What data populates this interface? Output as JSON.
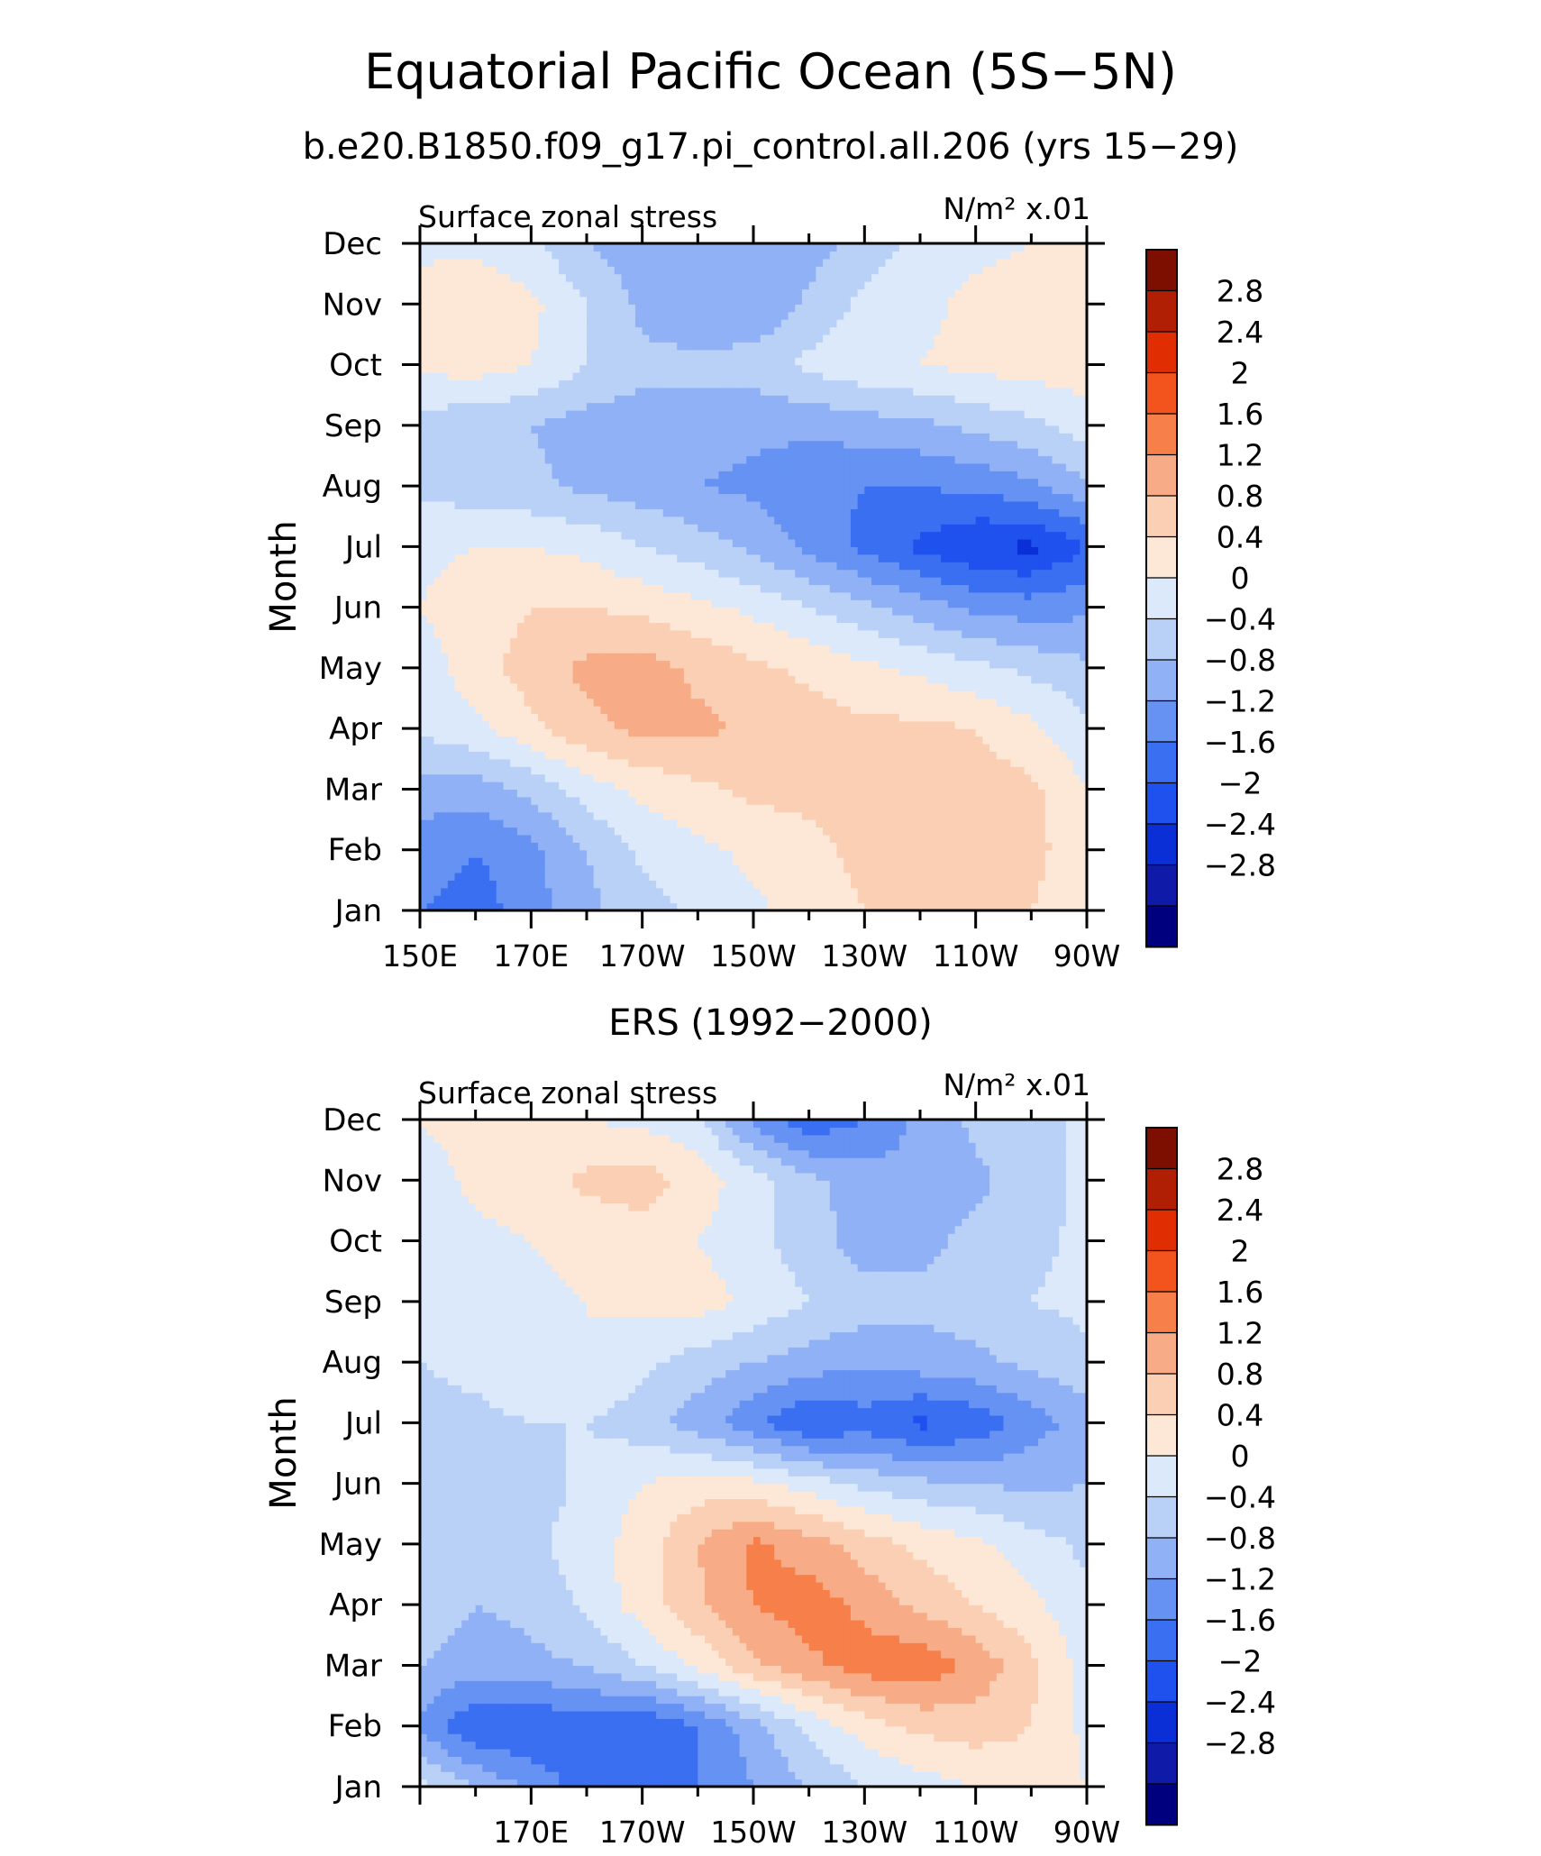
{
  "page": {
    "title": "Equatorial Pacific Ocean (5S−5N)",
    "subtitle": "b.e20.B1850.f09_g17.pi_control.all.206 (yrs 15−29)"
  },
  "chart_data": [
    {
      "type": "heatmap",
      "title": "",
      "left_label": "Surface zonal stress",
      "units_label": "N/m² x.01",
      "xlabel": "",
      "ylabel": "Month",
      "x_ticks": [
        "150E",
        "170E",
        "170W",
        "150W",
        "130W",
        "110W",
        "90W"
      ],
      "y_ticks": [
        "Jan",
        "Feb",
        "Mar",
        "Apr",
        "May",
        "Jun",
        "Jul",
        "Aug",
        "Sep",
        "Oct",
        "Nov",
        "Dec"
      ],
      "xlim": [
        150,
        270
      ],
      "levels": [
        -2.8,
        -2.4,
        -2,
        -1.6,
        -1.2,
        -0.8,
        -0.4,
        0,
        0.4,
        0.8,
        1.2,
        1.6,
        2,
        2.4,
        2.8
      ],
      "colors": [
        "#00007f",
        "#0f1ba8",
        "#0a2fd6",
        "#1f51ee",
        "#3a6ff2",
        "#6592f3",
        "#90b1f5",
        "#b9d0f7",
        "#dbe9fb",
        "#fde8d7",
        "#fbcfb4",
        "#f7ac87",
        "#f67f4a",
        "#f3541e",
        "#e02d02",
        "#b01e03",
        "#7d0f00"
      ],
      "x": [
        150,
        160,
        170,
        180,
        190,
        200,
        210,
        220,
        230,
        240,
        250,
        260,
        270
      ],
      "values": [
        [
          -1.2,
          -1.4,
          -1.0,
          -0.5,
          -0.2,
          0.1,
          0.3,
          0.6,
          0.8,
          0.8,
          0.8,
          0.8,
          0.5
        ],
        [
          -1.0,
          -1.2,
          -0.9,
          -0.4,
          0.1,
          0.3,
          0.5,
          0.7,
          0.9,
          0.9,
          0.9,
          0.9,
          0.6
        ],
        [
          -0.6,
          -0.6,
          -0.3,
          0.2,
          0.5,
          0.7,
          0.9,
          0.9,
          1.0,
          1.1,
          1.0,
          0.9,
          0.4
        ],
        [
          0.1,
          0.3,
          0.7,
          1.1,
          1.3,
          1.3,
          1.1,
          1.0,
          0.9,
          0.9,
          0.8,
          0.5,
          0.1
        ],
        [
          0.2,
          0.6,
          1.0,
          1.3,
          1.4,
          1.1,
          0.9,
          0.7,
          0.5,
          0.3,
          0.1,
          -0.1,
          -0.3
        ],
        [
          0.4,
          0.6,
          0.8,
          0.8,
          0.7,
          0.5,
          0.3,
          0.0,
          -0.3,
          -0.6,
          -0.9,
          -1.0,
          -0.9
        ],
        [
          0.3,
          0.4,
          0.4,
          0.3,
          0.0,
          -0.2,
          -0.5,
          -0.9,
          -1.3,
          -1.7,
          -2.0,
          -2.1,
          -1.6
        ],
        [
          -0.1,
          -0.2,
          -0.3,
          -0.5,
          -0.6,
          -0.8,
          -0.9,
          -1.1,
          -1.2,
          -1.2,
          -1.1,
          -0.9,
          -0.5
        ],
        [
          -0.2,
          -0.3,
          -0.4,
          -0.6,
          -0.6,
          -0.6,
          -0.7,
          -0.7,
          -0.6,
          -0.5,
          -0.3,
          -0.1,
          0.2
        ],
        [
          0.5,
          0.6,
          0.4,
          0.0,
          -0.3,
          -0.3,
          -0.2,
          0.1,
          0.3,
          0.4,
          0.5,
          0.6,
          0.6
        ],
        [
          0.6,
          0.7,
          0.5,
          0.0,
          -0.5,
          -0.7,
          -0.8,
          -0.3,
          0.1,
          0.3,
          0.5,
          0.6,
          0.6
        ],
        [
          0.3,
          0.3,
          0.1,
          -0.4,
          -0.6,
          -0.8,
          -0.8,
          -0.6,
          -0.2,
          0.1,
          0.3,
          0.4,
          0.4
        ]
      ]
    },
    {
      "type": "heatmap",
      "title": "ERS (1992−2000)",
      "left_label": "Surface zonal stress",
      "units_label": "N/m² x.01",
      "xlabel": "",
      "ylabel": "Month",
      "x_ticks": [
        "170E",
        "170W",
        "150W",
        "130W",
        "110W",
        "90W"
      ],
      "y_ticks": [
        "Jan",
        "Feb",
        "Mar",
        "Apr",
        "May",
        "Jun",
        "Jul",
        "Aug",
        "Sep",
        "Oct",
        "Nov",
        "Dec"
      ],
      "xlim": [
        150,
        270
      ],
      "levels": [
        -2.8,
        -2.4,
        -2,
        -1.6,
        -1.2,
        -0.8,
        -0.4,
        0,
        0.4,
        0.8,
        1.2,
        1.6,
        2,
        2.4,
        2.8
      ],
      "colors": [
        "#00007f",
        "#0f1ba8",
        "#0a2fd6",
        "#1f51ee",
        "#3a6ff2",
        "#6592f3",
        "#90b1f5",
        "#b9d0f7",
        "#dbe9fb",
        "#fde8d7",
        "#fbcfb4",
        "#f7ac87",
        "#f67f4a",
        "#f3541e",
        "#e02d02",
        "#b01e03",
        "#7d0f00"
      ],
      "x": [
        150,
        160,
        170,
        180,
        190,
        200,
        210,
        220,
        230,
        240,
        250,
        260,
        270
      ],
      "values": [
        [
          0.1,
          -0.4,
          -0.9,
          -1.4,
          -1.6,
          -1.2,
          -0.8,
          -0.4,
          0.0,
          0.2,
          0.4,
          0.6,
          0.4
        ],
        [
          -0.9,
          -1.6,
          -1.6,
          -1.4,
          -1.6,
          -1.2,
          -0.6,
          0.1,
          0.6,
          0.9,
          1.0,
          0.8,
          0.3
        ],
        [
          -0.4,
          -0.6,
          -0.5,
          -0.4,
          0.0,
          0.5,
          1.1,
          1.5,
          1.8,
          1.9,
          1.5,
          0.9,
          0.2
        ],
        [
          -0.2,
          -0.4,
          -0.3,
          0.1,
          0.6,
          1.1,
          1.6,
          1.8,
          1.5,
          1.1,
          0.8,
          0.5,
          0.1
        ],
        [
          -0.1,
          -0.2,
          -0.1,
          0.2,
          0.6,
          1.2,
          1.7,
          1.4,
          1.0,
          0.7,
          0.5,
          0.2,
          -0.1
        ],
        [
          -0.2,
          -0.4,
          -0.2,
          0.1,
          0.4,
          0.6,
          0.5,
          0.2,
          -0.1,
          -0.3,
          -0.4,
          -0.5,
          -0.4
        ],
        [
          -0.1,
          -0.1,
          0.0,
          0.0,
          -0.2,
          -0.6,
          -1.1,
          -1.6,
          -1.4,
          -1.7,
          -1.5,
          -1.0,
          -0.6
        ],
        [
          0.0,
          0.1,
          0.3,
          0.4,
          0.1,
          -0.2,
          -0.4,
          -0.6,
          -0.7,
          -0.6,
          -0.5,
          -0.3,
          -0.1
        ],
        [
          0.0,
          0.2,
          0.3,
          0.4,
          0.5,
          0.6,
          0.3,
          0.0,
          -0.2,
          -0.3,
          -0.2,
          0.0,
          0.1
        ],
        [
          0.0,
          0.3,
          0.4,
          0.5,
          0.6,
          0.4,
          0.1,
          -0.2,
          -0.6,
          -0.5,
          -0.3,
          -0.1,
          0.1
        ],
        [
          0.2,
          0.5,
          0.6,
          0.9,
          1.0,
          0.6,
          0.2,
          -0.3,
          -0.6,
          -0.7,
          -0.5,
          -0.2,
          0.1
        ],
        [
          0.4,
          0.6,
          0.5,
          0.4,
          0.3,
          0.1,
          -0.9,
          -1.5,
          -1.2,
          -0.7,
          -0.3,
          -0.2,
          0.1
        ]
      ]
    }
  ],
  "colorbar": {
    "labels": [
      "2.8",
      "2.4",
      "2",
      "1.6",
      "1.2",
      "0.8",
      "0.4",
      "0",
      "−0.4",
      "−0.8",
      "−1.2",
      "−1.6",
      "−2",
      "−2.4",
      "−2.8"
    ],
    "colors": [
      "#7d0f00",
      "#b01e03",
      "#e02d02",
      "#f3541e",
      "#f67f4a",
      "#f7ac87",
      "#fbcfb4",
      "#fde8d7",
      "#dbe9fb",
      "#b9d0f7",
      "#90b1f5",
      "#6592f3",
      "#3a6ff2",
      "#1f51ee",
      "#0a2fd6",
      "#0f1ba8",
      "#00007f"
    ]
  }
}
